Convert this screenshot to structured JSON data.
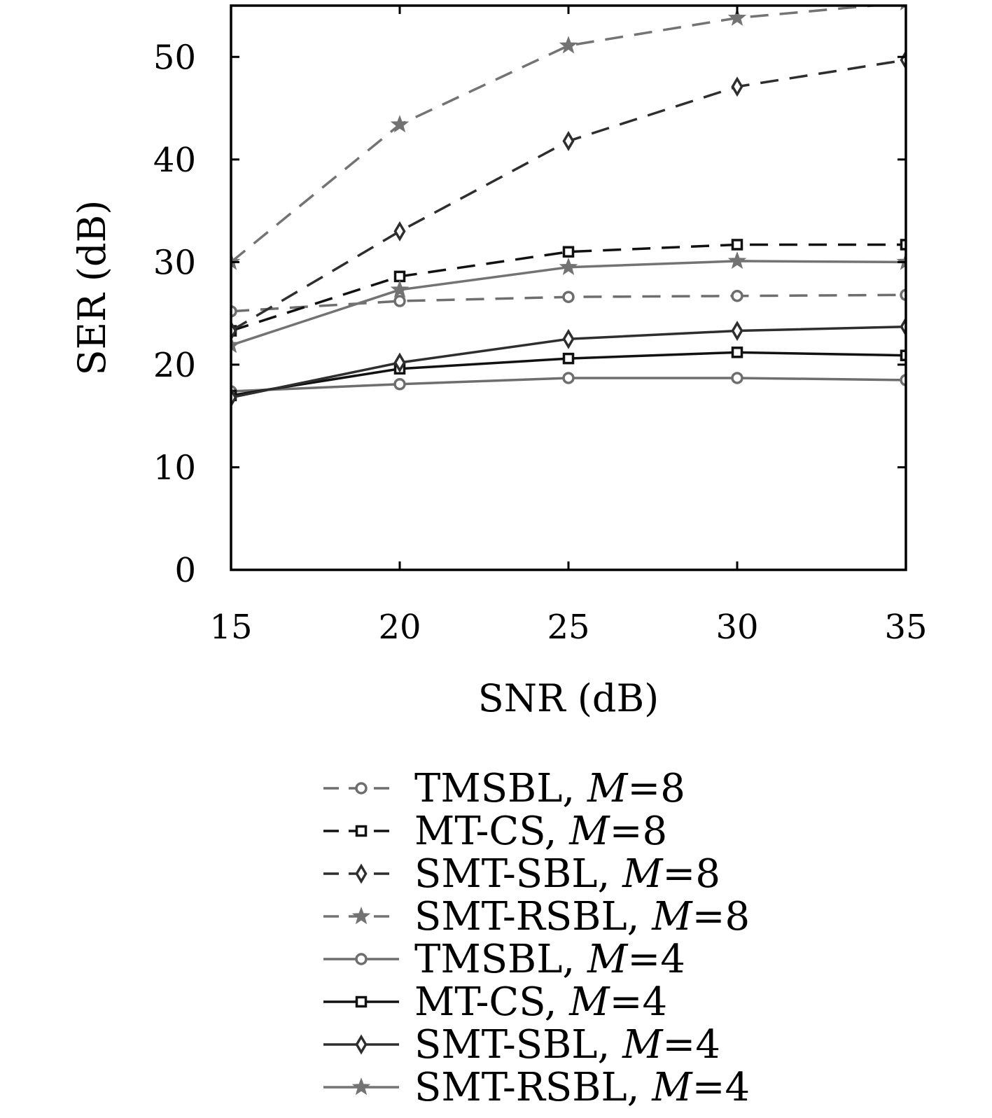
{
  "chart_data": {
    "type": "line",
    "xlabel": "SNR (dB)",
    "ylabel": "SER (dB)",
    "xlim": [
      15,
      35
    ],
    "ylim": [
      0,
      55
    ],
    "x": [
      15,
      20,
      25,
      30,
      35
    ],
    "xticks": [
      "15",
      "20",
      "25",
      "30",
      "35"
    ],
    "yticks": [
      "0",
      "10",
      "20",
      "30",
      "40",
      "50"
    ],
    "grid": false,
    "legend_position": "below",
    "series": [
      {
        "name": "TMSBL, ",
        "m_label": "M",
        "m_value": "=8",
        "line": "dashed",
        "marker": "circle",
        "color": "#6e6e6e",
        "values": [
          25.2,
          26.2,
          26.6,
          26.7,
          26.8
        ]
      },
      {
        "name": "MT-CS, ",
        "m_label": "M",
        "m_value": "=8",
        "line": "dashed",
        "marker": "square",
        "color": "#111111",
        "values": [
          23.3,
          28.6,
          31.0,
          31.7,
          31.7
        ]
      },
      {
        "name": "SMT-SBL, ",
        "m_label": "M",
        "m_value": "=8",
        "line": "dashed",
        "marker": "diamond",
        "color": "#2e2e2e",
        "values": [
          23.3,
          33.0,
          41.8,
          47.1,
          49.7
        ]
      },
      {
        "name": "SMT-RSBL, ",
        "m_label": "M",
        "m_value": "=8",
        "line": "dashed",
        "marker": "star",
        "color": "#737373",
        "values": [
          30.0,
          43.4,
          51.1,
          53.8,
          55.3
        ]
      },
      {
        "name": "TMSBL, ",
        "m_label": "M",
        "m_value": "=4",
        "line": "solid",
        "marker": "circle",
        "color": "#6e6e6e",
        "values": [
          17.4,
          18.1,
          18.7,
          18.7,
          18.5
        ]
      },
      {
        "name": "MT-CS, ",
        "m_label": "M",
        "m_value": "=4",
        "line": "solid",
        "marker": "square",
        "color": "#111111",
        "values": [
          17.0,
          19.6,
          20.6,
          21.2,
          20.9
        ]
      },
      {
        "name": "SMT-SBL, ",
        "m_label": "M",
        "m_value": "=4",
        "line": "solid",
        "marker": "diamond",
        "color": "#2e2e2e",
        "values": [
          16.8,
          20.2,
          22.5,
          23.3,
          23.7
        ]
      },
      {
        "name": "SMT-RSBL, ",
        "m_label": "M",
        "m_value": "=4",
        "line": "solid",
        "marker": "star",
        "color": "#737373",
        "values": [
          21.9,
          27.3,
          29.5,
          30.1,
          30.0
        ]
      }
    ]
  }
}
